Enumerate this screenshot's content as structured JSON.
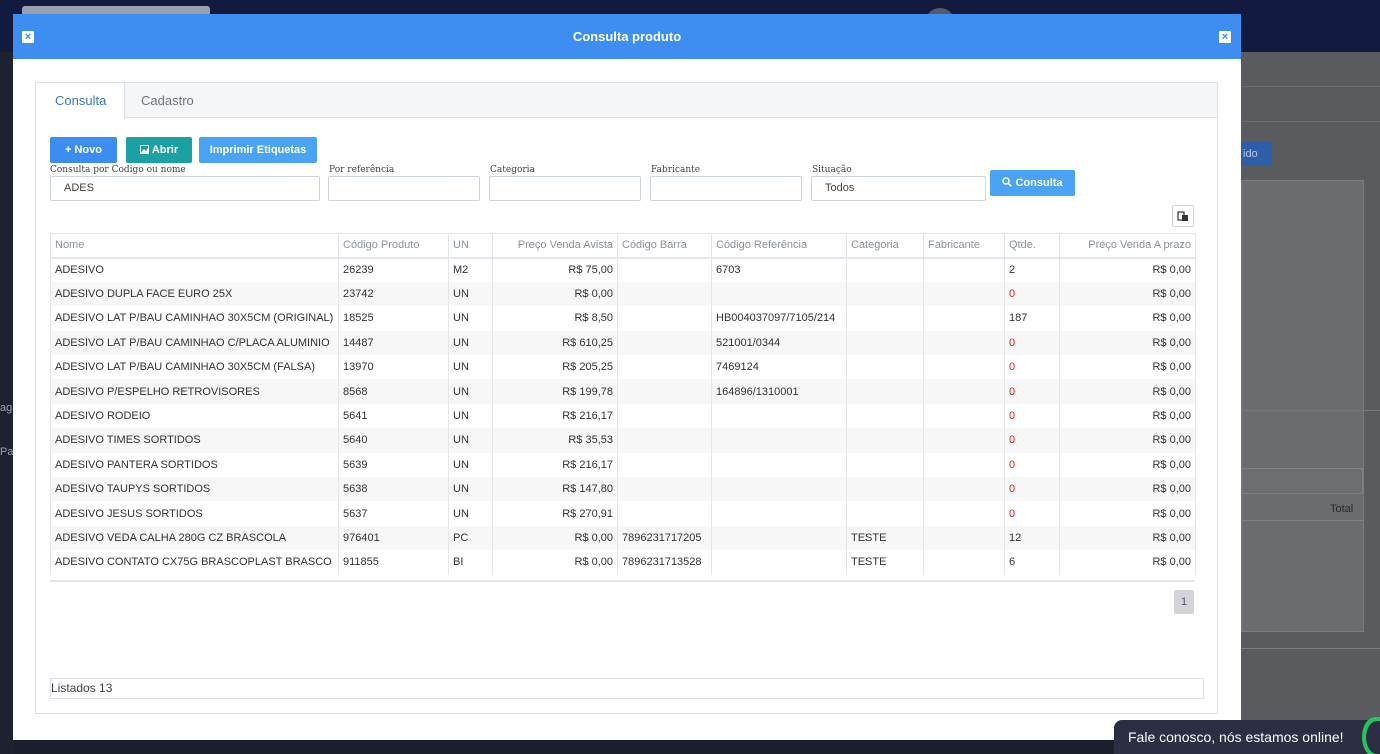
{
  "modal": {
    "title": "Consulta produto",
    "close_icon_left": "close-icon",
    "close_icon_right": "close-icon"
  },
  "tabs": [
    {
      "label": "Consulta",
      "active": true
    },
    {
      "label": "Cadastro",
      "active": false
    }
  ],
  "toolbar": {
    "novo_label": "+ Novo",
    "abrir_label": "Abrir",
    "imprimir_label": "Imprimir Etiquetas",
    "consulta_label": "Consulta"
  },
  "filters": {
    "codigo_nome": {
      "label": "Consulta por Codigo ou nome",
      "value": "ADES"
    },
    "referencia": {
      "label": "Por referência",
      "value": ""
    },
    "categoria": {
      "label": "Categoria",
      "value": ""
    },
    "fabricante": {
      "label": "Fabricante",
      "value": ""
    },
    "situacao": {
      "label": "Situação",
      "value": "Todos"
    }
  },
  "table": {
    "columns": [
      "Nome",
      "Código Produto",
      "UN",
      "Preço Venda Avista",
      "Código Barra",
      "Código Referência",
      "Categoria",
      "Fabricante",
      "Qtde.",
      "Preço Venda A prazo"
    ],
    "rows": [
      [
        "ADESIVO",
        "26239",
        "M2",
        "R$ 75,00",
        "",
        "6703",
        "",
        "",
        "2",
        "R$ 0,00"
      ],
      [
        "ADESIVO DUPLA FACE EURO 25X",
        "23742",
        "UN",
        "R$ 0,00",
        "",
        "",
        "",
        "",
        "0",
        "R$ 0,00"
      ],
      [
        "ADESIVO LAT P/BAU CAMINHAO 30X5CM (ORIGINAL)",
        "18525",
        "UN",
        "R$ 8,50",
        "",
        "HB004037097/7105/214",
        "",
        "",
        "187",
        "R$ 0,00"
      ],
      [
        "ADESIVO LAT P/BAU CAMINHAO C/PLACA ALUMINIO",
        "14487",
        "UN",
        "R$ 610,25",
        "",
        "521001/0344",
        "",
        "",
        "0",
        "R$ 0,00"
      ],
      [
        "ADESIVO LAT P/BAU CAMINHAO 30X5CM (FALSA)",
        "13970",
        "UN",
        "R$ 205,25",
        "",
        "7469124",
        "",
        "",
        "0",
        "R$ 0,00"
      ],
      [
        "ADESIVO P/ESPELHO RETROVISORES",
        "8568",
        "UN",
        "R$ 199,78",
        "",
        "164896/1310001",
        "",
        "",
        "0",
        "R$ 0,00"
      ],
      [
        "ADESIVO RODEIO",
        "5641",
        "UN",
        "R$ 216,17",
        "",
        "",
        "",
        "",
        "0",
        "R$ 0,00"
      ],
      [
        "ADESIVO TIMES SORTIDOS",
        "5640",
        "UN",
        "R$ 35,53",
        "",
        "",
        "",
        "",
        "0",
        "R$ 0,00"
      ],
      [
        "ADESIVO PANTERA SORTIDOS",
        "5639",
        "UN",
        "R$ 216,17",
        "",
        "",
        "",
        "",
        "0",
        "R$ 0,00"
      ],
      [
        "ADESIVO TAUPYS SORTIDOS",
        "5638",
        "UN",
        "R$ 147,80",
        "",
        "",
        "",
        "",
        "0",
        "R$ 0,00"
      ],
      [
        "ADESIVO JESUS SORTIDOS",
        "5637",
        "UN",
        "R$ 270,91",
        "",
        "",
        "",
        "",
        "0",
        "R$ 0,00"
      ],
      [
        "ADESIVO VEDA CALHA 280G CZ BRASCOLA",
        "976401",
        "PC",
        "R$ 0,00",
        "7896231717205",
        "",
        "TESTE",
        "",
        "12",
        "R$ 0,00"
      ],
      [
        "ADESIVO CONTATO CX75G BRASCOPLAST BRASCO",
        "911855",
        "BI",
        "R$ 0,00",
        "7896231713528",
        "",
        "TESTE",
        "",
        "6",
        "R$ 0,00"
      ]
    ]
  },
  "pager": {
    "current": "1"
  },
  "footer": {
    "listados": "Listados  13"
  },
  "background": {
    "left_text_1": "aga",
    "left_text_2": "Pa",
    "right_button": "ido",
    "right_total": "Total"
  },
  "chat": {
    "label": "Fale conosco, nós estamos online!"
  },
  "colors": {
    "header_blue": "#3d8ef0",
    "teal_button": "#1ba1a3",
    "zero_red": "#e0201e"
  }
}
